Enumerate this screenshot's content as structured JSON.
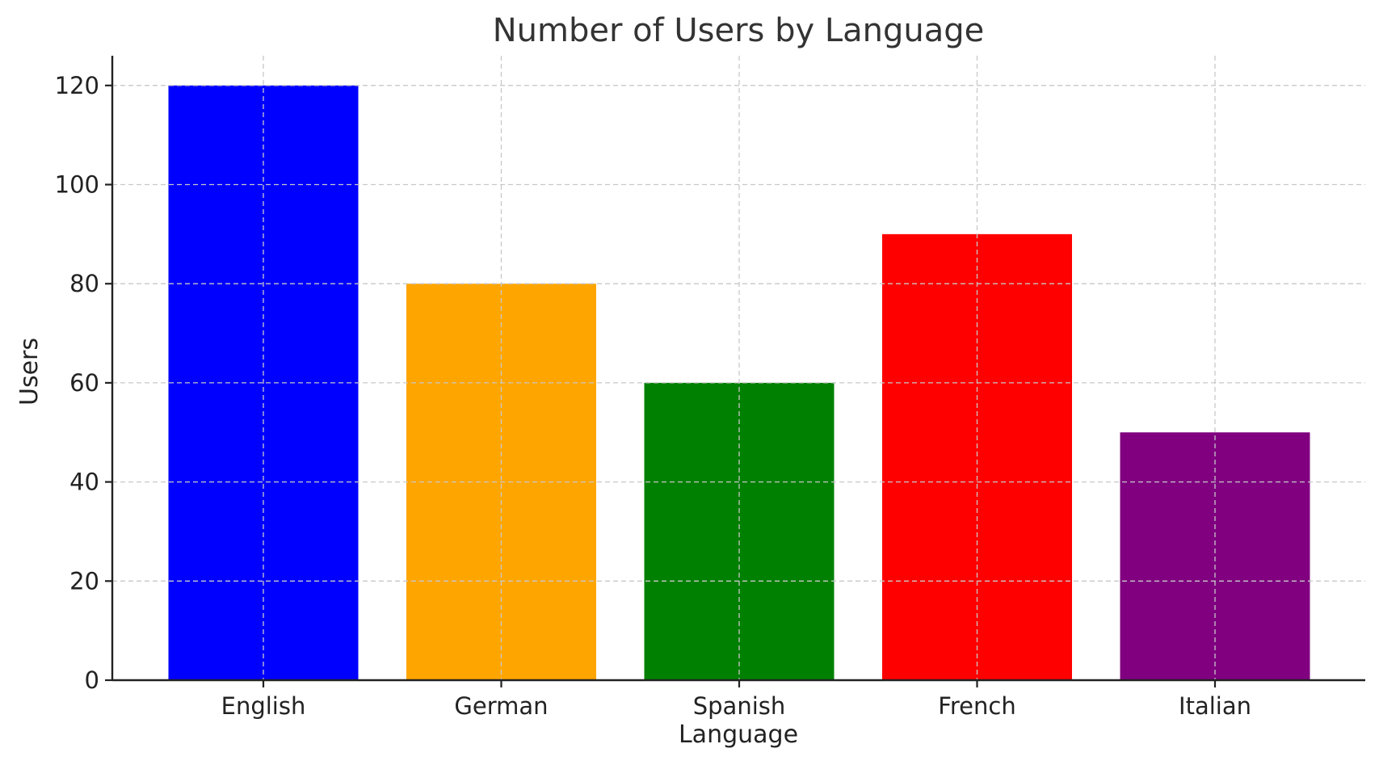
{
  "chart_data": {
    "type": "bar",
    "title": "Number of Users by Language",
    "xlabel": "Language",
    "ylabel": "Users",
    "categories": [
      "English",
      "German",
      "Spanish",
      "French",
      "Italian"
    ],
    "values": [
      120,
      80,
      60,
      90,
      50
    ],
    "colors": [
      "#0000ff",
      "#ffa500",
      "#008000",
      "#ff0000",
      "#800080"
    ],
    "ylim": [
      0,
      126
    ],
    "yticks": [
      0,
      20,
      40,
      60,
      80,
      100,
      120
    ],
    "grid": true,
    "legend": "none"
  }
}
